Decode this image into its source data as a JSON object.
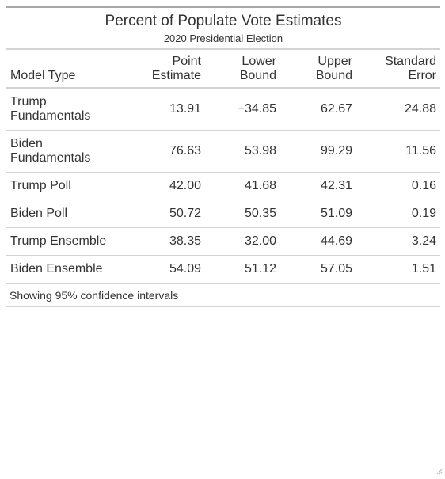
{
  "table": {
    "title": "Percent of Populate Vote Estimates",
    "subtitle": "2020 Presidential Election",
    "columns": [
      {
        "line1": "",
        "line2": "Model Type"
      },
      {
        "line1": "Point",
        "line2": "Estimate"
      },
      {
        "line1": "Lower",
        "line2": "Bound"
      },
      {
        "line1": "Upper",
        "line2": "Bound"
      },
      {
        "line1": "Standard",
        "line2": "Error"
      }
    ],
    "rows": [
      {
        "model": "Trump Fundamentals",
        "point": "13.91",
        "lower": "−34.85",
        "upper": "62.67",
        "se": "24.88"
      },
      {
        "model": "Biden Fundamentals",
        "point": "76.63",
        "lower": "53.98",
        "upper": "99.29",
        "se": "11.56"
      },
      {
        "model": "Trump Poll",
        "point": "42.00",
        "lower": "41.68",
        "upper": "42.31",
        "se": "0.16"
      },
      {
        "model": "Biden Poll",
        "point": "50.72",
        "lower": "50.35",
        "upper": "51.09",
        "se": "0.19"
      },
      {
        "model": "Trump Ensemble",
        "point": "38.35",
        "lower": "32.00",
        "upper": "44.69",
        "se": "3.24"
      },
      {
        "model": "Biden Ensemble",
        "point": "54.09",
        "lower": "51.12",
        "upper": "57.05",
        "se": "1.51"
      }
    ],
    "footnote": "Showing 95% confidence intervals"
  },
  "icons": {
    "resize_grip": "resize-grip-icon"
  }
}
